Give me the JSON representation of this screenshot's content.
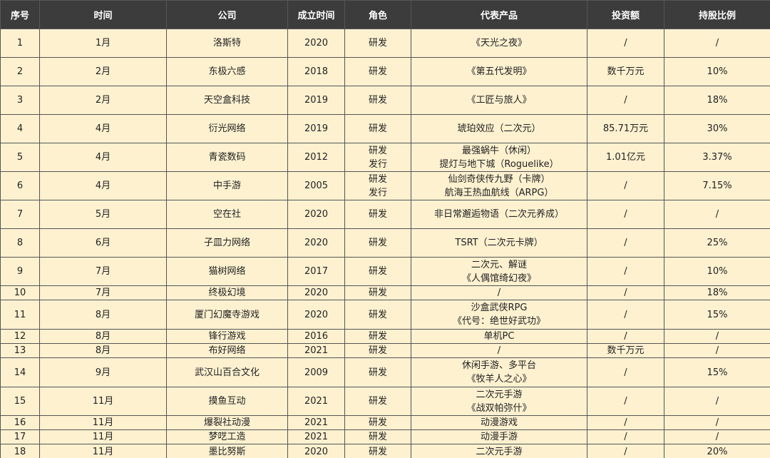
{
  "table": {
    "headers": [
      "序号",
      "时间",
      "公司",
      "成立时间",
      "角色",
      "代表产品",
      "投资额",
      "持股比例"
    ],
    "rows": [
      [
        "1",
        "1月",
        "洛斯特",
        "2020",
        "研发",
        "《天光之夜》",
        "/",
        "/"
      ],
      [
        "2",
        "2月",
        "东极六感",
        "2018",
        "研发",
        "《第五代发明》",
        "数千万元",
        "10%"
      ],
      [
        "3",
        "2月",
        "天空盒科技",
        "2019",
        "研发",
        "《工匠与旅人》",
        "/",
        "18%"
      ],
      [
        "4",
        "4月",
        "衍光网络",
        "2019",
        "研发",
        "琥珀效应（二次元）",
        "85.71万元",
        "30%"
      ],
      [
        "5",
        "4月",
        "青瓷数码",
        "2012",
        [
          "研发",
          "发行"
        ],
        [
          "最强蜗牛（休闲）",
          "提灯与地下城（Roguelike）"
        ],
        "1.01亿元",
        "3.37%"
      ],
      [
        "6",
        "4月",
        "中手游",
        "2005",
        [
          "研发",
          "发行"
        ],
        [
          "仙剑奇侠传九野（卡牌）",
          "航海王热血航线（ARPG）"
        ],
        "/",
        "7.15%"
      ],
      [
        "7",
        "5月",
        "空在社",
        "2020",
        "研发",
        "非日常邂逅物语（二次元养成）",
        "/",
        "/"
      ],
      [
        "8",
        "6月",
        "子皿力网络",
        "2020",
        "研发",
        "TSRT（二次元卡牌）",
        "/",
        "25%"
      ],
      [
        "9",
        "7月",
        "猫树网络",
        "2017",
        "研发",
        [
          "二次元、解谜",
          "《人偶馆绮幻夜》"
        ],
        "/",
        "10%"
      ],
      [
        "10",
        "7月",
        "终极幻境",
        "2020",
        "研发",
        "/",
        "/",
        "18%"
      ],
      [
        "11",
        "8月",
        "厦门幻魔寺游戏",
        "2020",
        "研发",
        [
          "沙盒武侠RPG",
          "《代号：绝世好武功》"
        ],
        "/",
        "15%"
      ],
      [
        "12",
        "8月",
        "锋行游戏",
        "2016",
        "研发",
        "单机PC",
        "/",
        "/"
      ],
      [
        "13",
        "8月",
        "布好网络",
        "2021",
        "研发",
        "/",
        "数千万元",
        "/"
      ],
      [
        "14",
        "9月",
        "武汉山百合文化",
        "2009",
        "研发",
        [
          "休闲手游、多平台",
          "《牧羊人之心》"
        ],
        "/",
        "15%"
      ],
      [
        "15",
        "11月",
        "摸鱼互动",
        "2021",
        "研发",
        [
          "二次元手游",
          "《战双帕弥什》"
        ],
        "/",
        "/"
      ],
      [
        "16",
        "11月",
        "爆裂社动漫",
        "2021",
        "研发",
        "动漫游戏",
        "/",
        "/"
      ],
      [
        "17",
        "11月",
        "梦呓工造",
        "2021",
        "研发",
        "动漫手游",
        "/",
        "/"
      ],
      [
        "18",
        "11月",
        "墨比努斯",
        "2020",
        "研发",
        "二次元手游",
        "/",
        "20%"
      ]
    ]
  }
}
